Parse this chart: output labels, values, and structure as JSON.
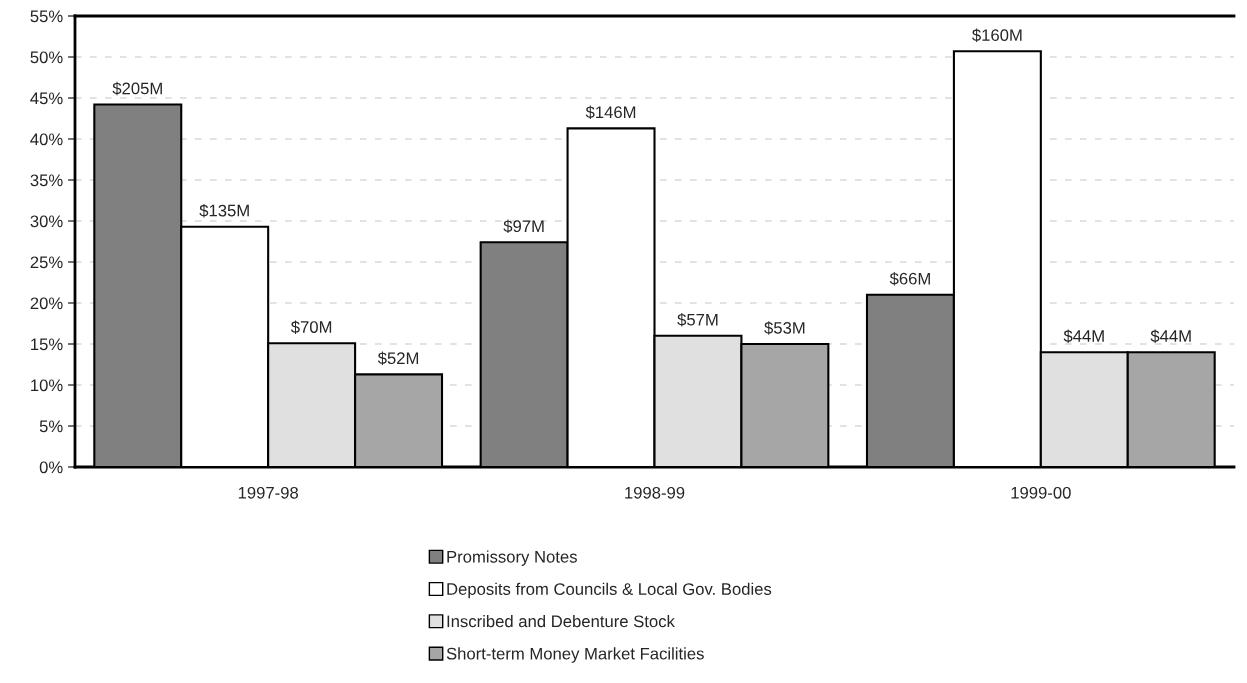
{
  "chart_data": {
    "type": "bar",
    "categories": [
      "1997-98",
      "1998-99",
      "1999-00"
    ],
    "series": [
      {
        "name": "Promissory Notes",
        "color": "#808080",
        "values": [
          44.2,
          27.4,
          21.0
        ]
      },
      {
        "name": "Deposits from Councils & Local Gov. Bodies",
        "color": "#ffffff",
        "values": [
          29.3,
          41.3,
          50.7
        ]
      },
      {
        "name": "Inscribed and Debenture Stock",
        "color": "#e0e0e0",
        "values": [
          15.1,
          16.0,
          14.0
        ]
      },
      {
        "name": "Short-term Money Market Facilities",
        "color": "#a6a6a6",
        "values": [
          11.3,
          15.0,
          14.0
        ]
      }
    ],
    "annotations": [
      "$205M",
      "$135M",
      "$70M",
      "$52M",
      "$97M",
      "$146M",
      "$57M",
      "$53M",
      "$66M",
      "$160M",
      "$44M",
      "$44M"
    ],
    "ylim": [
      0,
      55
    ],
    "yticks": [
      {
        "value": 0,
        "label": "0%"
      },
      {
        "value": 5,
        "label": "5%"
      },
      {
        "value": 10,
        "label": "10%"
      },
      {
        "value": 15,
        "label": "15%"
      },
      {
        "value": 20,
        "label": "20%"
      },
      {
        "value": 25,
        "label": "25%"
      },
      {
        "value": 30,
        "label": "30%"
      },
      {
        "value": 35,
        "label": "35%"
      },
      {
        "value": 40,
        "label": "40%"
      },
      {
        "value": 45,
        "label": "45%"
      },
      {
        "value": 50,
        "label": "50%"
      },
      {
        "value": 55,
        "label": "55%"
      }
    ],
    "grid": "y",
    "legend": "bottom"
  }
}
